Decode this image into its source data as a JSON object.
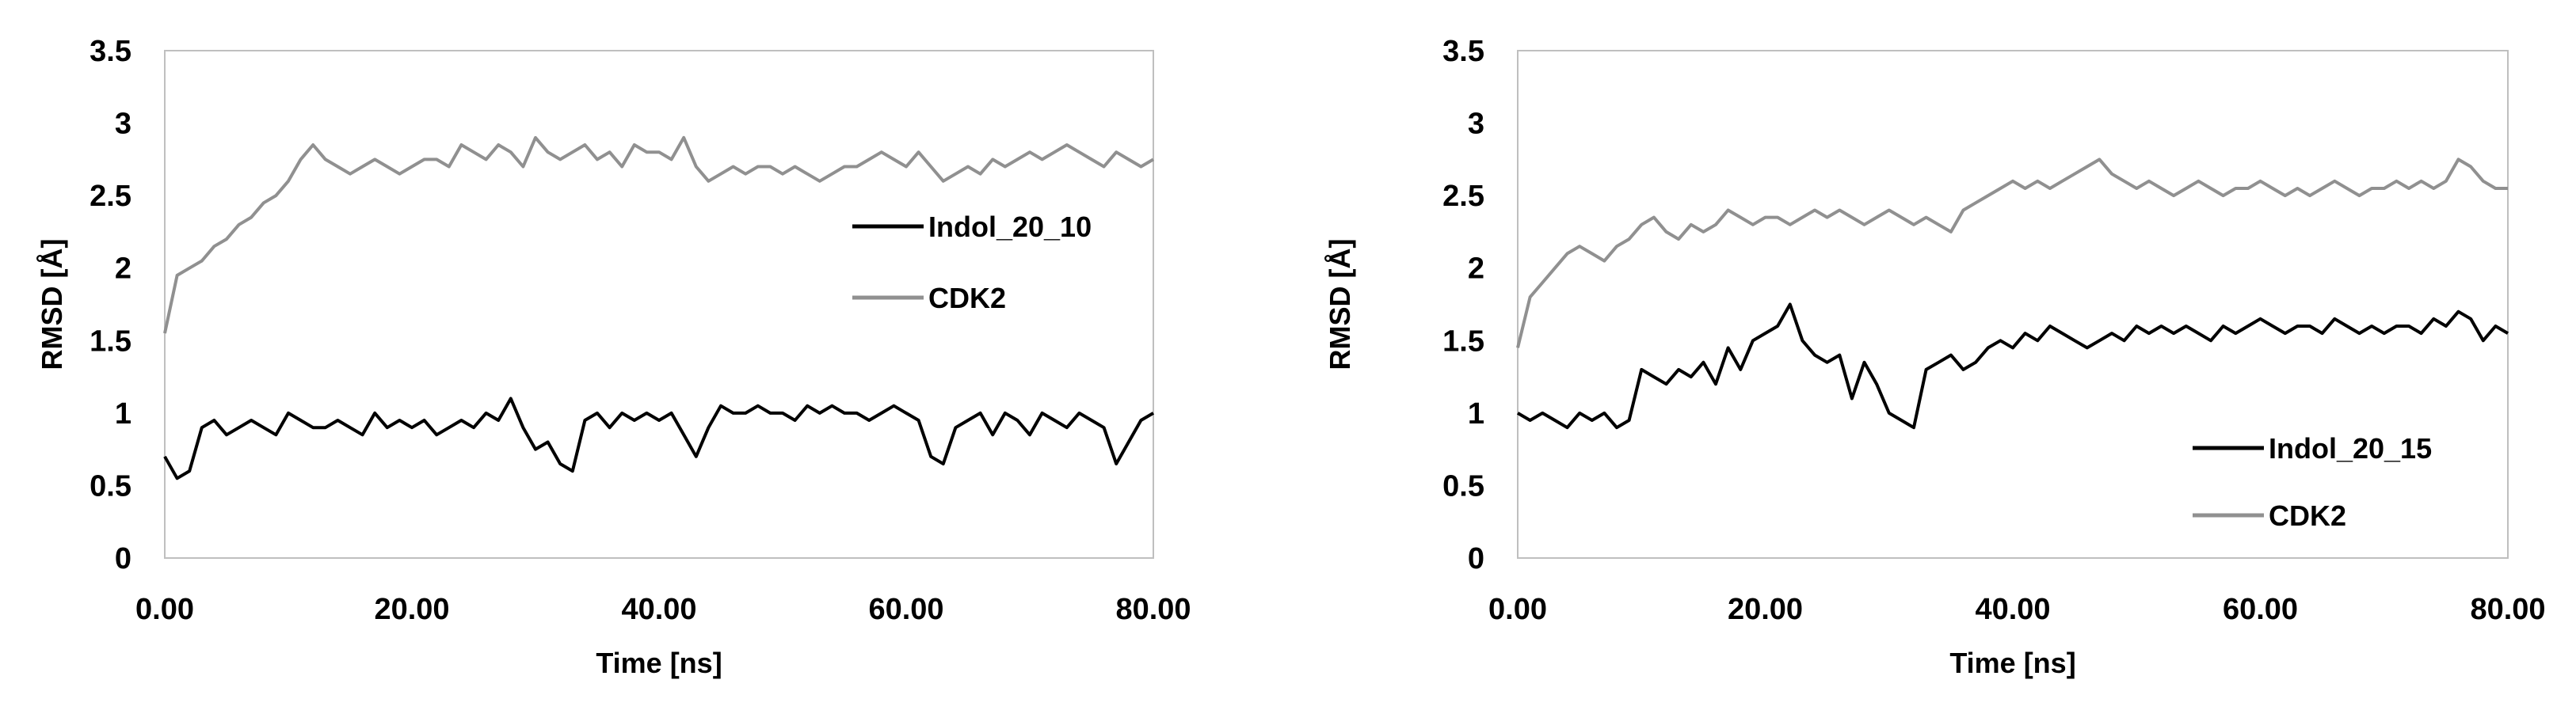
{
  "chart_data": [
    {
      "type": "line",
      "xlabel": "Time [ns]",
      "ylabel": "RMSD [Å]",
      "xlim": [
        0,
        80
      ],
      "ylim": [
        0,
        3.5
      ],
      "x_ticks": [
        "0.00",
        "20.00",
        "40.00",
        "60.00",
        "80.00"
      ],
      "y_ticks": [
        "0",
        "0.5",
        "1",
        "1.5",
        "2",
        "2.5",
        "3",
        "3.5"
      ],
      "legend_position": "right",
      "series": [
        {
          "name": "Indol_20_10",
          "color": "#000000",
          "x": [
            0,
            1,
            2,
            3,
            4,
            5,
            6,
            7,
            8,
            9,
            10,
            11,
            12,
            13,
            14,
            15,
            16,
            17,
            18,
            19,
            20,
            21,
            22,
            23,
            24,
            25,
            26,
            27,
            28,
            29,
            30,
            31,
            32,
            33,
            34,
            35,
            36,
            37,
            38,
            39,
            40,
            41,
            42,
            43,
            44,
            45,
            46,
            47,
            48,
            49,
            50,
            51,
            52,
            53,
            54,
            55,
            56,
            57,
            58,
            59,
            60,
            61,
            62,
            63,
            64,
            65,
            66,
            67,
            68,
            69,
            70,
            71,
            72,
            73,
            74,
            75,
            76,
            77,
            78,
            79,
            80
          ],
          "values": [
            0.7,
            0.55,
            0.6,
            0.9,
            0.95,
            0.85,
            0.9,
            0.95,
            0.9,
            0.85,
            1.0,
            0.95,
            0.9,
            0.9,
            0.95,
            0.9,
            0.85,
            1.0,
            0.9,
            0.95,
            0.9,
            0.95,
            0.85,
            0.9,
            0.95,
            0.9,
            1.0,
            0.95,
            1.1,
            0.9,
            0.75,
            0.8,
            0.65,
            0.6,
            0.95,
            1.0,
            0.9,
            1.0,
            0.95,
            1.0,
            0.95,
            1.0,
            0.85,
            0.7,
            0.9,
            1.05,
            1.0,
            1.0,
            1.05,
            1.0,
            1.0,
            0.95,
            1.05,
            1.0,
            1.05,
            1.0,
            1.0,
            0.95,
            1.0,
            1.05,
            1.0,
            0.95,
            0.7,
            0.65,
            0.9,
            0.95,
            1.0,
            0.85,
            1.0,
            0.95,
            0.85,
            1.0,
            0.95,
            0.9,
            1.0,
            0.95,
            0.9,
            0.65,
            0.8,
            0.95,
            1.0
          ]
        },
        {
          "name": "CDK2",
          "color": "#909090",
          "x": [
            0,
            1,
            2,
            3,
            4,
            5,
            6,
            7,
            8,
            9,
            10,
            11,
            12,
            13,
            14,
            15,
            16,
            17,
            18,
            19,
            20,
            21,
            22,
            23,
            24,
            25,
            26,
            27,
            28,
            29,
            30,
            31,
            32,
            33,
            34,
            35,
            36,
            37,
            38,
            39,
            40,
            41,
            42,
            43,
            44,
            45,
            46,
            47,
            48,
            49,
            50,
            51,
            52,
            53,
            54,
            55,
            56,
            57,
            58,
            59,
            60,
            61,
            62,
            63,
            64,
            65,
            66,
            67,
            68,
            69,
            70,
            71,
            72,
            73,
            74,
            75,
            76,
            77,
            78,
            79,
            80
          ],
          "values": [
            1.55,
            1.95,
            2.0,
            2.05,
            2.15,
            2.2,
            2.3,
            2.35,
            2.45,
            2.5,
            2.6,
            2.75,
            2.85,
            2.75,
            2.7,
            2.65,
            2.7,
            2.75,
            2.7,
            2.65,
            2.7,
            2.75,
            2.75,
            2.7,
            2.85,
            2.8,
            2.75,
            2.85,
            2.8,
            2.7,
            2.9,
            2.8,
            2.75,
            2.8,
            2.85,
            2.75,
            2.8,
            2.7,
            2.85,
            2.8,
            2.8,
            2.75,
            2.9,
            2.7,
            2.6,
            2.65,
            2.7,
            2.65,
            2.7,
            2.7,
            2.65,
            2.7,
            2.65,
            2.6,
            2.65,
            2.7,
            2.7,
            2.75,
            2.8,
            2.75,
            2.7,
            2.8,
            2.7,
            2.6,
            2.65,
            2.7,
            2.65,
            2.75,
            2.7,
            2.75,
            2.8,
            2.75,
            2.8,
            2.85,
            2.8,
            2.75,
            2.7,
            2.8,
            2.75,
            2.7,
            2.75
          ]
        }
      ]
    },
    {
      "type": "line",
      "xlabel": "Time [ns]",
      "ylabel": "RMSD [Å]",
      "xlim": [
        0,
        80
      ],
      "ylim": [
        0,
        3.5
      ],
      "x_ticks": [
        "0.00",
        "20.00",
        "40.00",
        "60.00",
        "80.00"
      ],
      "y_ticks": [
        "0",
        "0.5",
        "1",
        "1.5",
        "2",
        "2.5",
        "3",
        "3.5"
      ],
      "legend_position": "bottom-right",
      "series": [
        {
          "name": "Indol_20_15",
          "color": "#000000",
          "x": [
            0,
            1,
            2,
            3,
            4,
            5,
            6,
            7,
            8,
            9,
            10,
            11,
            12,
            13,
            14,
            15,
            16,
            17,
            18,
            19,
            20,
            21,
            22,
            23,
            24,
            25,
            26,
            27,
            28,
            29,
            30,
            31,
            32,
            33,
            34,
            35,
            36,
            37,
            38,
            39,
            40,
            41,
            42,
            43,
            44,
            45,
            46,
            47,
            48,
            49,
            50,
            51,
            52,
            53,
            54,
            55,
            56,
            57,
            58,
            59,
            60,
            61,
            62,
            63,
            64,
            65,
            66,
            67,
            68,
            69,
            70,
            71,
            72,
            73,
            74,
            75,
            76,
            77,
            78,
            79,
            80
          ],
          "values": [
            1.0,
            0.95,
            1.0,
            0.95,
            0.9,
            1.0,
            0.95,
            1.0,
            0.9,
            0.95,
            1.3,
            1.25,
            1.2,
            1.3,
            1.25,
            1.35,
            1.2,
            1.45,
            1.3,
            1.5,
            1.55,
            1.6,
            1.75,
            1.5,
            1.4,
            1.35,
            1.4,
            1.1,
            1.35,
            1.2,
            1.0,
            0.95,
            0.9,
            1.3,
            1.35,
            1.4,
            1.3,
            1.35,
            1.45,
            1.5,
            1.45,
            1.55,
            1.5,
            1.6,
            1.55,
            1.5,
            1.45,
            1.5,
            1.55,
            1.5,
            1.6,
            1.55,
            1.6,
            1.55,
            1.6,
            1.55,
            1.5,
            1.6,
            1.55,
            1.6,
            1.65,
            1.6,
            1.55,
            1.6,
            1.6,
            1.55,
            1.65,
            1.6,
            1.55,
            1.6,
            1.55,
            1.6,
            1.6,
            1.55,
            1.65,
            1.6,
            1.7,
            1.65,
            1.5,
            1.6,
            1.55
          ]
        },
        {
          "name": "CDK2",
          "color": "#909090",
          "x": [
            0,
            1,
            2,
            3,
            4,
            5,
            6,
            7,
            8,
            9,
            10,
            11,
            12,
            13,
            14,
            15,
            16,
            17,
            18,
            19,
            20,
            21,
            22,
            23,
            24,
            25,
            26,
            27,
            28,
            29,
            30,
            31,
            32,
            33,
            34,
            35,
            36,
            37,
            38,
            39,
            40,
            41,
            42,
            43,
            44,
            45,
            46,
            47,
            48,
            49,
            50,
            51,
            52,
            53,
            54,
            55,
            56,
            57,
            58,
            59,
            60,
            61,
            62,
            63,
            64,
            65,
            66,
            67,
            68,
            69,
            70,
            71,
            72,
            73,
            74,
            75,
            76,
            77,
            78,
            79,
            80
          ],
          "values": [
            1.45,
            1.8,
            1.9,
            2.0,
            2.1,
            2.15,
            2.1,
            2.05,
            2.15,
            2.2,
            2.3,
            2.35,
            2.25,
            2.2,
            2.3,
            2.25,
            2.3,
            2.4,
            2.35,
            2.3,
            2.35,
            2.35,
            2.3,
            2.35,
            2.4,
            2.35,
            2.4,
            2.35,
            2.3,
            2.35,
            2.4,
            2.35,
            2.3,
            2.35,
            2.3,
            2.25,
            2.4,
            2.45,
            2.5,
            2.55,
            2.6,
            2.55,
            2.6,
            2.55,
            2.6,
            2.65,
            2.7,
            2.75,
            2.65,
            2.6,
            2.55,
            2.6,
            2.55,
            2.5,
            2.55,
            2.6,
            2.55,
            2.5,
            2.55,
            2.55,
            2.6,
            2.55,
            2.5,
            2.55,
            2.5,
            2.55,
            2.6,
            2.55,
            2.5,
            2.55,
            2.55,
            2.6,
            2.55,
            2.6,
            2.55,
            2.6,
            2.75,
            2.7,
            2.6,
            2.55,
            2.55
          ]
        }
      ]
    }
  ]
}
